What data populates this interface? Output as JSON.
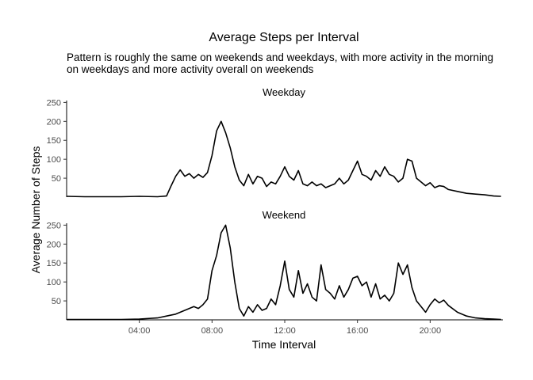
{
  "chart_data": {
    "type": "line",
    "title": "Average Steps per Interval",
    "subtitle_lines": [
      "Pattern is roughly the same on weekends and weekdays, with more activity in the morning",
      "on weekdays and more activity overall on weekends"
    ],
    "xlabel": "Time Interval",
    "ylabel": "Average Number of Steps",
    "x_unit": "hours",
    "xlim": [
      0,
      24
    ],
    "x_ticks": [
      4,
      8,
      12,
      16,
      20
    ],
    "x_tick_labels": [
      "04:00",
      "08:00",
      "12:00",
      "16:00",
      "20:00"
    ],
    "grid": false,
    "panels": [
      {
        "title": "Weekday",
        "ylim": [
          0,
          255
        ],
        "y_ticks": [
          50,
          100,
          150,
          200,
          250
        ],
        "y_tick_labels": [
          "50",
          "100",
          "150",
          "200",
          "250"
        ],
        "x": [
          0,
          1,
          2,
          3,
          4,
          5,
          5.5,
          5.75,
          6.0,
          6.25,
          6.5,
          6.75,
          7.0,
          7.25,
          7.5,
          7.75,
          8.0,
          8.25,
          8.5,
          8.75,
          9.0,
          9.25,
          9.5,
          9.75,
          10.0,
          10.25,
          10.5,
          10.75,
          11.0,
          11.25,
          11.5,
          11.75,
          12.0,
          12.25,
          12.5,
          12.75,
          13.0,
          13.25,
          13.5,
          13.75,
          14.0,
          14.25,
          14.5,
          14.75,
          15.0,
          15.25,
          15.5,
          15.75,
          16.0,
          16.25,
          16.5,
          16.75,
          17.0,
          17.25,
          17.5,
          17.75,
          18.0,
          18.25,
          18.5,
          18.75,
          19.0,
          19.25,
          19.5,
          19.75,
          20.0,
          20.25,
          20.5,
          20.75,
          21.0,
          21.5,
          22.0,
          22.5,
          23.0,
          23.5,
          23.9
        ],
        "y": [
          2,
          1,
          1,
          1,
          2,
          1,
          3,
          30,
          55,
          72,
          55,
          62,
          50,
          60,
          52,
          65,
          110,
          175,
          200,
          170,
          130,
          80,
          45,
          30,
          60,
          35,
          55,
          50,
          28,
          40,
          35,
          55,
          80,
          55,
          45,
          70,
          35,
          30,
          40,
          30,
          35,
          25,
          30,
          35,
          50,
          35,
          45,
          70,
          95,
          60,
          55,
          45,
          70,
          55,
          80,
          60,
          55,
          40,
          50,
          100,
          95,
          50,
          40,
          30,
          38,
          25,
          30,
          28,
          20,
          15,
          10,
          8,
          6,
          3,
          2
        ]
      },
      {
        "title": "Weekend",
        "ylim": [
          0,
          255
        ],
        "y_ticks": [
          50,
          100,
          150,
          200,
          250
        ],
        "y_tick_labels": [
          "50",
          "100",
          "150",
          "200",
          "250"
        ],
        "x": [
          0,
          1,
          2,
          3,
          4,
          5,
          5.5,
          6.0,
          6.5,
          7.0,
          7.25,
          7.5,
          7.75,
          8.0,
          8.25,
          8.5,
          8.75,
          9.0,
          9.25,
          9.5,
          9.75,
          10.0,
          10.25,
          10.5,
          10.75,
          11.0,
          11.25,
          11.5,
          11.75,
          12.0,
          12.25,
          12.5,
          12.75,
          13.0,
          13.25,
          13.5,
          13.75,
          14.0,
          14.25,
          14.5,
          14.75,
          15.0,
          15.25,
          15.5,
          15.75,
          16.0,
          16.25,
          16.5,
          16.75,
          17.0,
          17.25,
          17.5,
          17.75,
          18.0,
          18.25,
          18.5,
          18.75,
          19.0,
          19.25,
          19.5,
          19.75,
          20.0,
          20.25,
          20.5,
          20.75,
          21.0,
          21.5,
          22.0,
          22.5,
          23.0,
          23.5,
          23.9
        ],
        "y": [
          1,
          1,
          1,
          1,
          2,
          5,
          10,
          15,
          25,
          35,
          30,
          40,
          55,
          130,
          170,
          230,
          250,
          190,
          100,
          30,
          10,
          35,
          20,
          40,
          25,
          30,
          55,
          40,
          90,
          155,
          80,
          60,
          130,
          70,
          95,
          60,
          50,
          145,
          80,
          70,
          55,
          90,
          60,
          80,
          110,
          115,
          90,
          100,
          60,
          95,
          55,
          65,
          50,
          70,
          150,
          120,
          145,
          85,
          50,
          35,
          20,
          40,
          55,
          45,
          52,
          38,
          20,
          10,
          5,
          3,
          2,
          1
        ]
      }
    ]
  }
}
